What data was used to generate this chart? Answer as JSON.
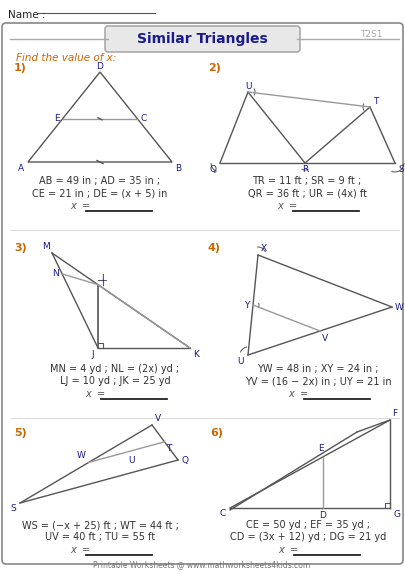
{
  "title": "Similar Triangles",
  "subtitle": "T2S1",
  "instruction": "Find the value of x:",
  "name_label": "Name :",
  "footer": "Printable Worksheets @ www.mathworksheets4kids.com",
  "title_color": "#1a1a8c",
  "orange_color": "#cc6600",
  "line_color": "#555555",
  "gray_color": "#999999",
  "bg_color": "#ffffff",
  "problems": [
    {
      "num": "1)",
      "lines": [
        "AB = 49 in ; AD = 35 in ;",
        "CE = 21 in ; DE = (x + 5) in"
      ]
    },
    {
      "num": "2)",
      "lines": [
        "TR = 11 ft ; SR = 9 ft ;",
        "QR = 36 ft ; UR = (4x) ft"
      ]
    },
    {
      "num": "3)",
      "lines": [
        "MN = 4 yd ; NL = (2x) yd ;",
        "LJ = 10 yd ; JK = 25 yd"
      ]
    },
    {
      "num": "4)",
      "lines": [
        "YW = 48 in ; XY = 24 in ;",
        "YV = (16 − 2x) in ; UY = 21 in"
      ]
    },
    {
      "num": "5)",
      "lines": [
        "WS = (−x + 25) ft ; WT = 44 ft ;",
        "UV = 40 ft ; TU = 55 ft"
      ]
    },
    {
      "num": "6)",
      "lines": [
        "CE = 50 yd ; EF = 35 yd ;",
        "CD = (3x + 12) yd ; DG = 21 yd"
      ]
    }
  ]
}
